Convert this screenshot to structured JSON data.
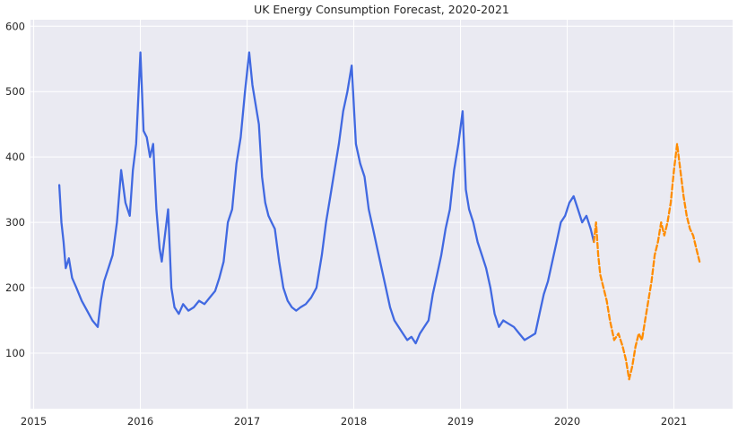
{
  "chart_data": {
    "type": "line",
    "title": "UK Energy Consumption Forecast, 2020-2021",
    "xlabel": "",
    "ylabel": "",
    "xlim": [
      2014.97,
      2021.55
    ],
    "ylim": [
      15,
      610
    ],
    "x_ticks": [
      2015,
      2016,
      2017,
      2018,
      2019,
      2020,
      2021
    ],
    "x_tick_labels": [
      "2015",
      "2016",
      "2017",
      "2018",
      "2019",
      "2020",
      "2021"
    ],
    "y_ticks": [
      100,
      200,
      300,
      400,
      500,
      600
    ],
    "y_tick_labels": [
      "100",
      "200",
      "300",
      "400",
      "500",
      "600"
    ],
    "grid": true,
    "legend": "none",
    "series": [
      {
        "style": "solid",
        "color": "#4169E1",
        "x": [
          2015.24,
          2015.26,
          2015.28,
          2015.3,
          2015.33,
          2015.36,
          2015.4,
          2015.45,
          2015.5,
          2015.55,
          2015.6,
          2015.63,
          2015.66,
          2015.7,
          2015.74,
          2015.78,
          2015.82,
          2015.86,
          2015.9,
          2015.93,
          2015.96,
          2016.0,
          2016.03,
          2016.06,
          2016.09,
          2016.12,
          2016.15,
          2016.18,
          2016.2,
          2016.23,
          2016.26,
          2016.29,
          2016.32,
          2016.36,
          2016.4,
          2016.45,
          2016.5,
          2016.55,
          2016.6,
          2016.65,
          2016.7,
          2016.74,
          2016.78,
          2016.82,
          2016.86,
          2016.9,
          2016.94,
          2016.98,
          2017.02,
          2017.05,
          2017.08,
          2017.11,
          2017.14,
          2017.17,
          2017.2,
          2017.23,
          2017.26,
          2017.3,
          2017.34,
          2017.38,
          2017.42,
          2017.46,
          2017.5,
          2017.55,
          2017.6,
          2017.65,
          2017.7,
          2017.74,
          2017.78,
          2017.82,
          2017.86,
          2017.9,
          2017.94,
          2017.98,
          2018.02,
          2018.06,
          2018.1,
          2018.14,
          2018.18,
          2018.22,
          2018.26,
          2018.3,
          2018.34,
          2018.38,
          2018.42,
          2018.46,
          2018.5,
          2018.54,
          2018.58,
          2018.62,
          2018.66,
          2018.7,
          2018.74,
          2018.78,
          2018.82,
          2018.86,
          2018.9,
          2018.94,
          2018.98,
          2019.02,
          2019.05,
          2019.08,
          2019.12,
          2019.16,
          2019.2,
          2019.24,
          2019.28,
          2019.32,
          2019.36,
          2019.4,
          2019.45,
          2019.5,
          2019.55,
          2019.6,
          2019.65,
          2019.7,
          2019.74,
          2019.78,
          2019.82,
          2019.86,
          2019.9,
          2019.94,
          2019.98,
          2020.02,
          2020.06,
          2020.1,
          2020.14,
          2020.18,
          2020.22,
          2020.25
        ],
        "y": [
          357,
          300,
          270,
          230,
          245,
          215,
          200,
          180,
          165,
          150,
          140,
          180,
          210,
          230,
          250,
          300,
          380,
          330,
          310,
          380,
          420,
          560,
          440,
          430,
          400,
          420,
          320,
          260,
          240,
          280,
          320,
          200,
          170,
          160,
          175,
          165,
          170,
          180,
          175,
          185,
          195,
          215,
          240,
          300,
          320,
          390,
          430,
          500,
          560,
          510,
          480,
          450,
          370,
          330,
          310,
          300,
          290,
          240,
          200,
          180,
          170,
          165,
          170,
          175,
          185,
          200,
          250,
          300,
          340,
          380,
          420,
          470,
          500,
          540,
          420,
          390,
          370,
          320,
          290,
          260,
          230,
          200,
          170,
          150,
          140,
          130,
          120,
          125,
          115,
          130,
          140,
          150,
          190,
          220,
          250,
          290,
          320,
          380,
          420,
          470,
          350,
          320,
          300,
          270,
          250,
          230,
          200,
          160,
          140,
          150,
          145,
          140,
          130,
          120,
          125,
          130,
          160,
          190,
          210,
          240,
          270,
          300,
          310,
          330,
          340,
          320,
          300,
          310,
          290,
          270
        ]
      },
      {
        "style": "dashed",
        "color": "#FF8C00",
        "x": [
          2020.25,
          2020.27,
          2020.29,
          2020.31,
          2020.34,
          2020.37,
          2020.4,
          2020.44,
          2020.48,
          2020.52,
          2020.55,
          2020.58,
          2020.61,
          2020.64,
          2020.67,
          2020.7,
          2020.73,
          2020.76,
          2020.79,
          2020.82,
          2020.85,
          2020.88,
          2020.91,
          2020.94,
          2020.97,
          2021.0,
          2021.03,
          2021.06,
          2021.09,
          2021.12,
          2021.15,
          2021.18,
          2021.21,
          2021.24
        ],
        "y": [
          270,
          300,
          250,
          220,
          200,
          180,
          150,
          120,
          130,
          110,
          90,
          60,
          80,
          110,
          130,
          120,
          150,
          180,
          210,
          250,
          270,
          300,
          280,
          300,
          330,
          380,
          420,
          380,
          340,
          310,
          290,
          280,
          260,
          240
        ]
      }
    ]
  }
}
